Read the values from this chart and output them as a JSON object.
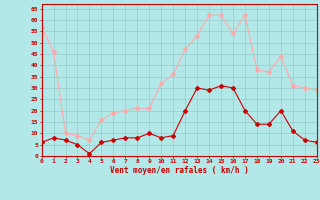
{
  "hours": [
    0,
    1,
    2,
    3,
    4,
    5,
    6,
    7,
    8,
    9,
    10,
    11,
    12,
    13,
    14,
    15,
    16,
    17,
    18,
    19,
    20,
    21,
    22,
    23
  ],
  "avg_wind": [
    6,
    8,
    7,
    5,
    1,
    6,
    7,
    8,
    8,
    10,
    8,
    9,
    20,
    30,
    29,
    31,
    30,
    20,
    14,
    14,
    20,
    11,
    7,
    6
  ],
  "gusts": [
    57,
    46,
    10,
    9,
    7,
    16,
    19,
    20,
    21,
    21,
    32,
    36,
    47,
    53,
    62,
    62,
    54,
    62,
    38,
    37,
    44,
    31,
    30,
    29
  ],
  "avg_color": "#cc0000",
  "gust_color": "#ffaaaa",
  "bg_color": "#b3e8e8",
  "grid_color": "#99cccc",
  "xlabel": "Vent moyen/en rafales ( km/h )",
  "ylabel_ticks": [
    0,
    5,
    10,
    15,
    20,
    25,
    30,
    35,
    40,
    45,
    50,
    55,
    60,
    65
  ],
  "ylim": [
    0,
    67
  ],
  "xlim": [
    0,
    23
  ]
}
